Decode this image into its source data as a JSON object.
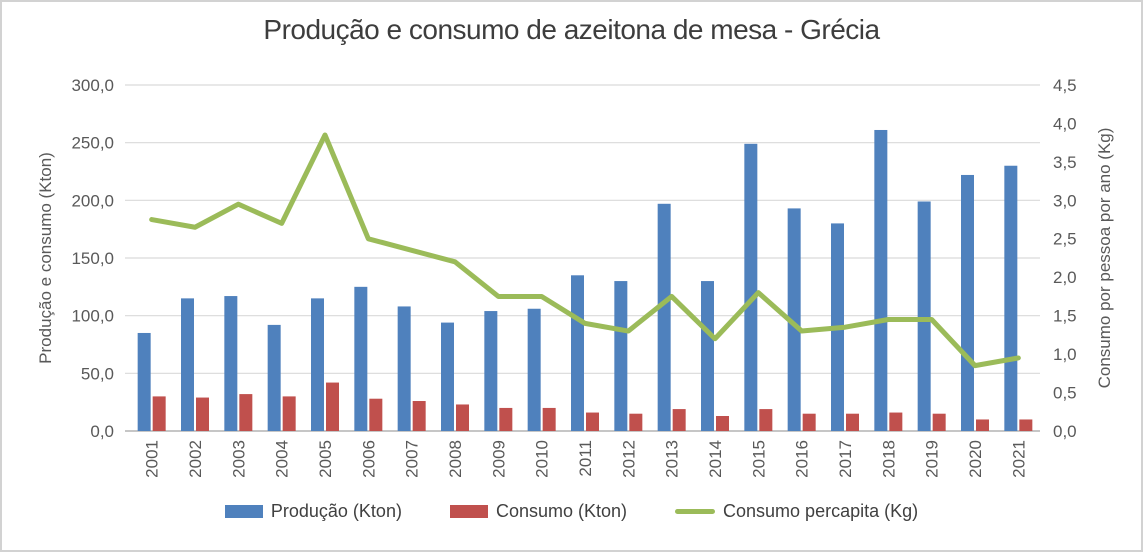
{
  "title": "Produção e consumo de azeitona de mesa - Grécia",
  "chart_data": {
    "type": "bar",
    "subtype": "combo-bar-line",
    "categories": [
      "2001",
      "2002",
      "2003",
      "2004",
      "2005",
      "2006",
      "2007",
      "2008",
      "2009",
      "2010",
      "2011",
      "2012",
      "2013",
      "2014",
      "2015",
      "2016",
      "2017",
      "2018",
      "2019",
      "2020",
      "2021"
    ],
    "series": [
      {
        "name": "Produção (Kton)",
        "type": "bar",
        "axis": "left",
        "color": "#4F81BD",
        "values": [
          85,
          115,
          117,
          92,
          115,
          125,
          108,
          94,
          104,
          106,
          135,
          130,
          197,
          130,
          249,
          193,
          180,
          261,
          199,
          222,
          230
        ]
      },
      {
        "name": "Consumo (Kton)",
        "type": "bar",
        "axis": "left",
        "color": "#C0504D",
        "values": [
          30,
          29,
          32,
          30,
          42,
          28,
          26,
          23,
          20,
          20,
          16,
          15,
          19,
          13,
          19,
          15,
          15,
          16,
          15,
          10,
          10
        ]
      },
      {
        "name": "Consumo percapita (Kg)",
        "type": "line",
        "axis": "right",
        "color": "#9BBB59",
        "values": [
          2.75,
          2.65,
          2.95,
          2.7,
          3.85,
          2.5,
          2.35,
          2.2,
          1.75,
          1.75,
          1.4,
          1.3,
          1.75,
          1.2,
          1.8,
          1.3,
          1.35,
          1.45,
          1.45,
          0.85,
          0.95
        ]
      }
    ],
    "left_axis": {
      "title": "Produção e consumo (Kton)",
      "min": 0,
      "max": 300,
      "step": 50,
      "tick_labels": [
        "300,0",
        "250,0",
        "200,0",
        "150,0",
        "100,0",
        "50,0",
        "0,0"
      ]
    },
    "right_axis": {
      "title": "Consumo por pessoa por ano (Kg)",
      "min": 0,
      "max": 4.5,
      "step": 0.5,
      "tick_labels": [
        "4,5",
        "4,0",
        "3,5",
        "3,0",
        "2,5",
        "2,0",
        "1,5",
        "1,0",
        "0,5",
        "0,0"
      ]
    },
    "grid": "horizontal-only",
    "legend_position": "bottom"
  },
  "colors": {
    "gridline": "#DADADA",
    "axis_line": "#C6C6C6",
    "tick_text": "#595959",
    "title_text": "#3d3d3d",
    "legend_text": "#404040"
  }
}
